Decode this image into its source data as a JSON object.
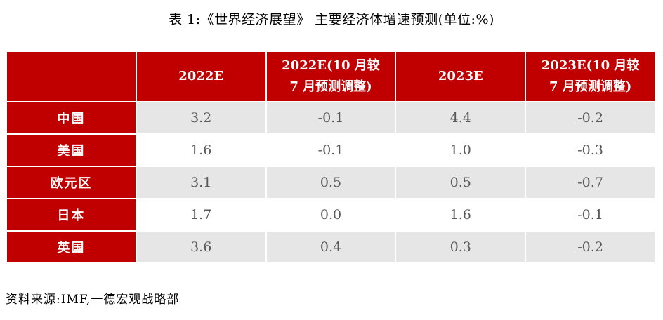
{
  "page": {
    "title": "表 1:《世界经济展望》 主要经济体增速预测(单位:%)",
    "source_note": "资料来源:IMF,一德宏观战略部"
  },
  "table": {
    "columns": [
      "",
      "2022E",
      "2022E(10 月较\n7 月预测调整)",
      "2023E",
      "2023E(10 月较\n7 月预测调整)"
    ],
    "rows": [
      {
        "label": "中国",
        "values": [
          "3.2",
          "-0.1",
          "4.4",
          "-0.2"
        ]
      },
      {
        "label": "美国",
        "values": [
          "1.6",
          "-0.1",
          "1.0",
          "-0.3"
        ]
      },
      {
        "label": "欧元区",
        "values": [
          "3.1",
          "0.5",
          "0.5",
          "-0.7"
        ]
      },
      {
        "label": "日本",
        "values": [
          "1.7",
          "0.0",
          "1.6",
          "-0.1"
        ]
      },
      {
        "label": "英国",
        "values": [
          "3.6",
          "0.4",
          "0.3",
          "-0.2"
        ]
      }
    ]
  },
  "colors": {
    "header_red": "#c00000",
    "row_gray": "#e7e6e6",
    "row_white": "#ffffff",
    "header_text": "#ffffff",
    "data_text": "#595959"
  }
}
